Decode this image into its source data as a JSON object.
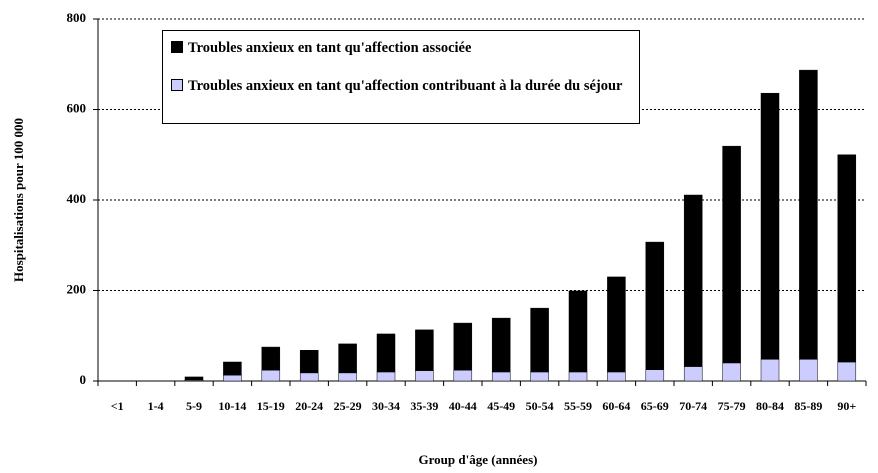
{
  "chart_data": {
    "type": "stacked_bar",
    "categories": [
      "<1",
      "1-4",
      "5-9",
      "10-14",
      "15-19",
      "20-24",
      "25-29",
      "30-34",
      "35-39",
      "40-44",
      "45-49",
      "50-54",
      "55-59",
      "60-64",
      "65-69",
      "70-74",
      "75-79",
      "80-84",
      "85-89",
      "90+"
    ],
    "series": [
      {
        "name": "Troubles anxieux en tant qu'affection contribuant à la durée du séjour",
        "color": "#ccccff",
        "values": [
          0,
          0,
          2,
          13,
          24,
          18,
          18,
          20,
          23,
          24,
          20,
          20,
          20,
          20,
          25,
          32,
          40,
          48,
          48,
          42
        ]
      },
      {
        "name": "Troubles anxieux en tant qu'affection associée",
        "color": "#000000",
        "values": [
          0,
          0,
          7,
          29,
          51,
          50,
          64,
          84,
          90,
          104,
          119,
          141,
          179,
          210,
          282,
          379,
          479,
          588,
          639,
          458
        ]
      }
    ],
    "ylabel": "Hospitalisations pour 100 000",
    "xlabel": "Group d'âge (années)",
    "ylim": [
      0,
      800
    ],
    "yticks": [
      0,
      200,
      400,
      600,
      800
    ],
    "grid": true,
    "legend": "top-left"
  }
}
